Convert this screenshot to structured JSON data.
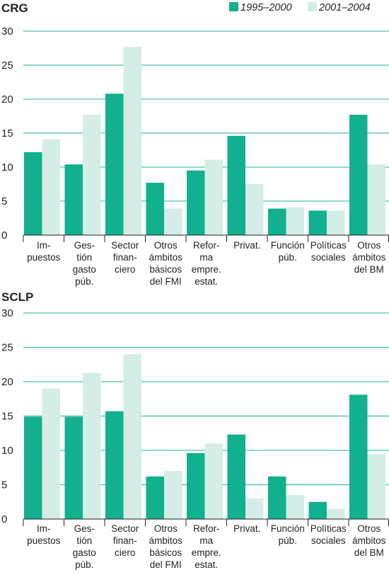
{
  "legend": [
    {
      "name": "1995–2000",
      "color": "#11b08f"
    },
    {
      "name": "2001–2004",
      "color": "#d4ede6"
    }
  ],
  "chart_data": [
    {
      "type": "bar",
      "title": "CRG",
      "ylim": [
        0,
        30
      ],
      "yticks": [
        0,
        5,
        10,
        15,
        20,
        25,
        30
      ],
      "grid": true,
      "legend_position": "top-right",
      "categories": [
        [
          "Im-",
          "puestos"
        ],
        [
          "Ges-",
          "tión",
          "gasto",
          "púb."
        ],
        [
          "Sector",
          "finan-",
          "ciero"
        ],
        [
          "Otros",
          "ámbitos",
          "básicos",
          "del FMI"
        ],
        [
          "Refor-",
          "ma",
          "empre.",
          "estat."
        ],
        [
          "Privat."
        ],
        [
          "Función",
          "púb."
        ],
        [
          "Políticas",
          "sociales"
        ],
        [
          "Otros",
          "ámbitos",
          "del BM"
        ]
      ],
      "series": [
        {
          "name": "1995–2000",
          "values": [
            12.2,
            10.4,
            20.8,
            7.7,
            9.5,
            14.6,
            3.9,
            3.6,
            17.7
          ]
        },
        {
          "name": "2001–2004",
          "values": [
            14.1,
            17.7,
            27.7,
            3.9,
            11.1,
            7.5,
            4.1,
            3.6,
            10.4
          ]
        }
      ]
    },
    {
      "type": "bar",
      "title": "SCLP",
      "ylim": [
        0,
        30
      ],
      "yticks": [
        0,
        5,
        10,
        15,
        20,
        25,
        30
      ],
      "grid": true,
      "categories": [
        [
          "Im-",
          "puestos"
        ],
        [
          "Ges-",
          "tión",
          "gasto",
          "púb."
        ],
        [
          "Sector",
          "finan-",
          "ciero"
        ],
        [
          "Otros",
          "ámbitos",
          "básicos",
          "del FMI"
        ],
        [
          "Refor-",
          "ma",
          "empre.",
          "estat."
        ],
        [
          "Privat."
        ],
        [
          "Función",
          "púb."
        ],
        [
          "Políticas",
          "sociales"
        ],
        [
          "Otros",
          "ámbitos",
          "del BM"
        ]
      ],
      "series": [
        {
          "name": "1995–2000",
          "values": [
            14.9,
            14.9,
            15.7,
            6.2,
            9.6,
            12.3,
            6.2,
            2.5,
            18.1
          ]
        },
        {
          "name": "2001–2004",
          "values": [
            19.0,
            21.3,
            24.0,
            7.0,
            11.0,
            3.0,
            3.5,
            1.5,
            9.5
          ]
        }
      ]
    }
  ]
}
